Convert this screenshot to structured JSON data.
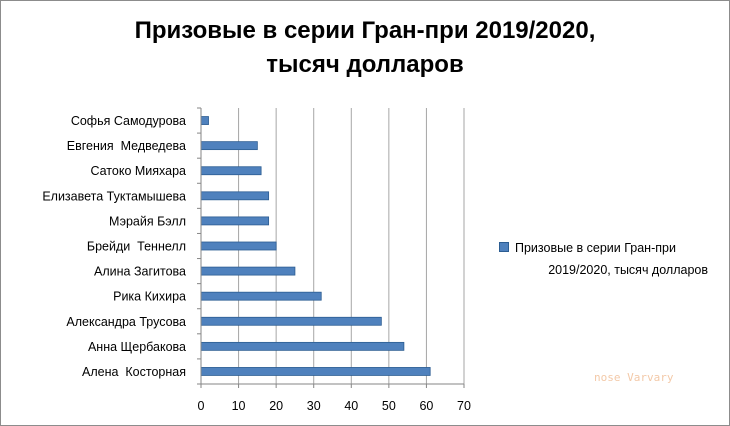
{
  "chart_data": {
    "type": "bar",
    "orientation": "horizontal",
    "title_lines": [
      "Призовые в серии Гран-при 2019/2020,",
      "тысяч долларов"
    ],
    "categories": [
      "Софья Самодурова",
      "Евгения  Медведева",
      "Сатоко Мияхара",
      "Елизавета Туктамышева",
      "Мэрайя Бэлл",
      "Брейди  Теннелл",
      "Алина Загитова",
      "Рика Кихира",
      "Александра Трусова",
      "Анна Щербакова",
      "Алена  Косторная"
    ],
    "series": [
      {
        "name_lines": [
          "Призовые в серии Гран-при",
          "2019/2020, тысяч долларов"
        ],
        "values": [
          2,
          15,
          16,
          18,
          18,
          20,
          25,
          32,
          48,
          54,
          61
        ],
        "color": "#4f81bd"
      }
    ],
    "xlim": [
      0,
      70
    ],
    "xticks": [
      "0",
      "10",
      "20",
      "30",
      "40",
      "50",
      "60",
      "70"
    ],
    "grid": "vertical",
    "legend": "right"
  },
  "watermark": "nose Varvary"
}
